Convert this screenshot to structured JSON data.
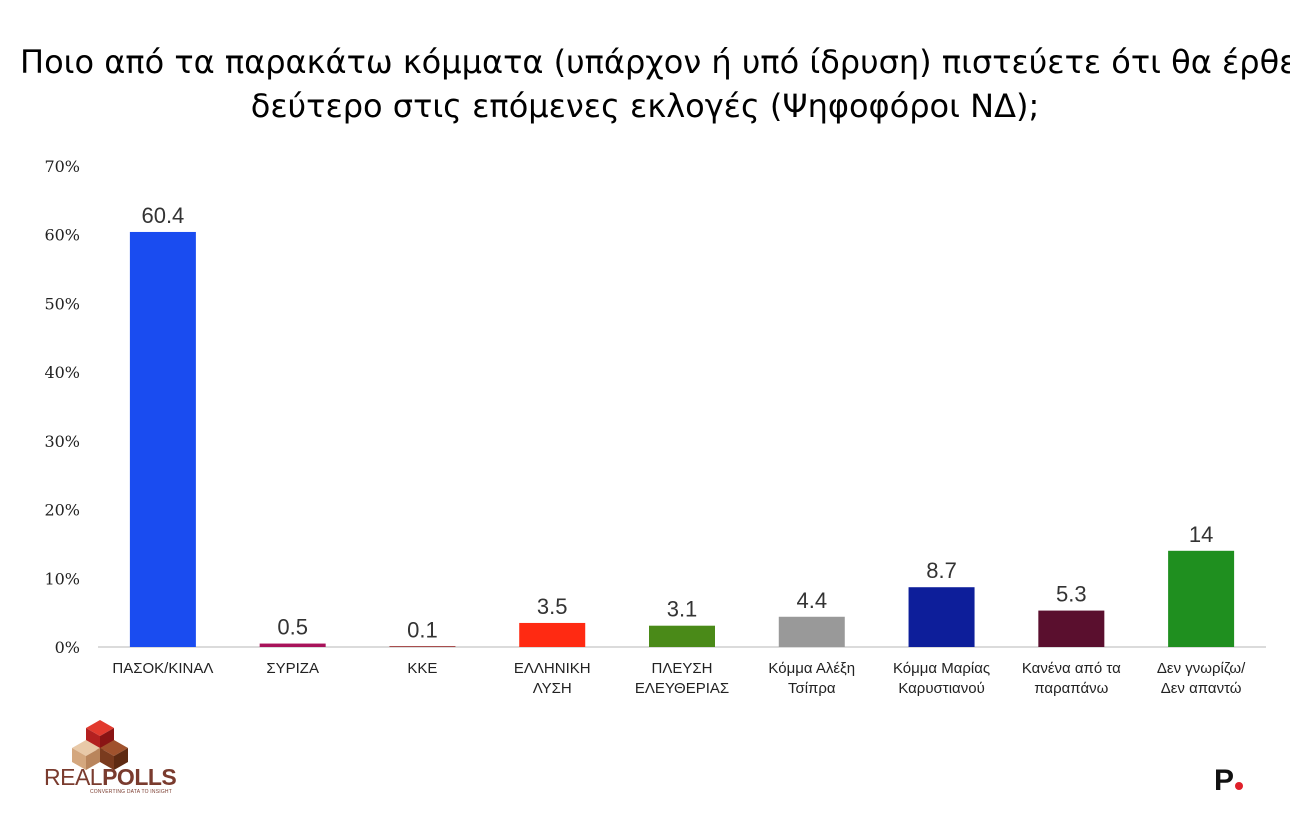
{
  "title": {
    "line1": "Ποιο από τα παρακάτω κόμματα (υπάρχον ή υπό ίδρυση) πιστεύετε ότι θα έρθει",
    "line2": "δεύτερο στις επόμενες εκλογές (Ψηφοφόροι ΝΔ);"
  },
  "chart_data": {
    "type": "bar",
    "categories": [
      [
        "ΠΑΣΟΚ/ΚΙΝΑΛ"
      ],
      [
        "ΣΥΡΙΖΑ"
      ],
      [
        "ΚΚΕ"
      ],
      [
        "ΕΛΛΗΝΙΚΗ",
        "ΛΥΣΗ"
      ],
      [
        "ΠΛΕΥΣΗ",
        "ΕΛΕΥΘΕΡΙΑΣ"
      ],
      [
        "Κόμμα Αλέξη",
        "Τσίπρα"
      ],
      [
        "Κόμμα Μαρίας",
        "Καρυστιανού"
      ],
      [
        "Κανένα από  τα",
        "παραπάνω"
      ],
      [
        "Δεν γνωρίζω/",
        "Δεν απαντώ"
      ]
    ],
    "values": [
      60.4,
      0.5,
      0.1,
      3.5,
      3.1,
      4.4,
      8.7,
      5.3,
      14
    ],
    "value_labels": [
      "60.4",
      "0.5",
      "0.1",
      "3.5",
      "3.1",
      "4.4",
      "8.7",
      "5.3",
      "14"
    ],
    "colors": [
      "#1a4cf0",
      "#a8125a",
      "#8b0a0a",
      "#ff2a12",
      "#4a8a18",
      "#999999",
      "#0d1e9a",
      "#5a0f2e",
      "#1f8f1f"
    ],
    "yticks": [
      "0%",
      "10%",
      "20%",
      "30%",
      "40%",
      "50%",
      "60%",
      "70%"
    ],
    "ylim": [
      0,
      70
    ],
    "grid": false
  },
  "branding": {
    "left_logo_light": "REAL",
    "left_logo_bold": "POLLS",
    "left_tagline": "CONVERTING DATA TO INSIGHT",
    "right_logo": "P"
  }
}
